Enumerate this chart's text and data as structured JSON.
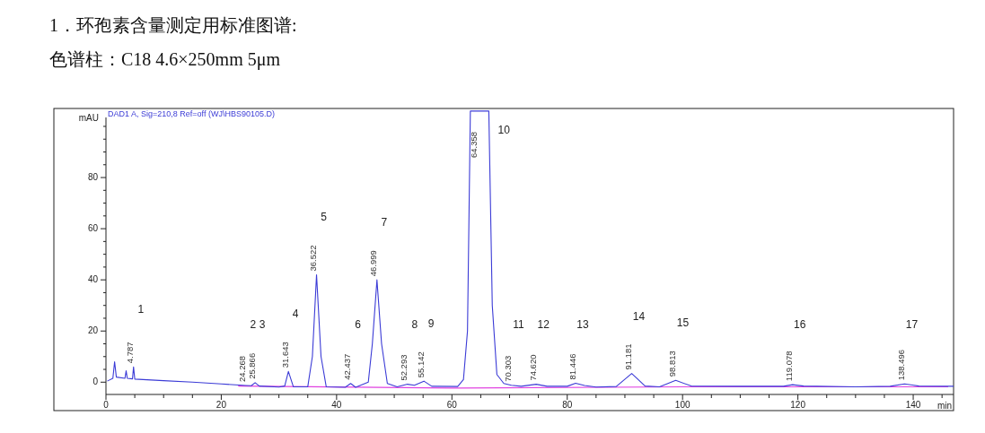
{
  "chart_data": {
    "type": "line",
    "title": "1．环孢素含量测定用标准图谱:",
    "subtitle": "色谱柱：C18 4.6×250mm 5μm",
    "xlabel": "min",
    "ylabel": "mAU",
    "xlim": [
      0,
      147
    ],
    "ylim": [
      -4.8,
      107
    ],
    "xticks": [
      0,
      {
        "value": 5,
        "label": null
      },
      {
        "value": 10,
        "label": null
      },
      {
        "value": 15,
        "label": null
      },
      20,
      {
        "value": 25,
        "label": null
      },
      {
        "value": 30,
        "label": null
      },
      {
        "value": 35,
        "label": null
      },
      40,
      {
        "value": 45,
        "label": null
      },
      {
        "value": 50,
        "label": null
      },
      {
        "value": 55,
        "label": null
      },
      60,
      {
        "value": 65,
        "label": null
      },
      {
        "value": 70,
        "label": null
      },
      {
        "value": 75,
        "label": null
      },
      80,
      {
        "value": 85,
        "label": null
      },
      {
        "value": 90,
        "label": null
      },
      {
        "value": 95,
        "label": null
      },
      100,
      {
        "value": 105,
        "label": null
      },
      {
        "value": 110,
        "label": null
      },
      {
        "value": 115,
        "label": null
      },
      120,
      {
        "value": 125,
        "label": null
      },
      {
        "value": 130,
        "label": null
      },
      {
        "value": 135,
        "label": null
      },
      140,
      {
        "value": 145,
        "label": null
      }
    ],
    "yticks": [
      0,
      {
        "value": 5,
        "label": null
      },
      {
        "value": 10,
        "label": null
      },
      {
        "value": 15,
        "label": null
      },
      20,
      {
        "value": 25,
        "label": null
      },
      {
        "value": 30,
        "label": null
      },
      {
        "value": 35,
        "label": null
      },
      40,
      {
        "value": 45,
        "label": null
      },
      {
        "value": 50,
        "label": null
      },
      {
        "value": 55,
        "label": null
      },
      60,
      {
        "value": 65,
        "label": null
      },
      {
        "value": 70,
        "label": null
      },
      {
        "value": 75,
        "label": null
      },
      80,
      {
        "value": 85,
        "label": null
      },
      {
        "value": 90,
        "label": null
      },
      {
        "value": 95,
        "label": null
      },
      {
        "value": 100,
        "label": null
      }
    ],
    "grid": false,
    "marker": "none",
    "line_style": "solid",
    "series": [
      {
        "color": "#3b3bd6",
        "x": [
          0.3,
          1.2,
          1.5,
          1.8,
          3.3,
          3.5,
          3.7,
          4.6,
          4.787,
          5.0,
          10,
          15,
          20,
          24.268,
          25.2,
          25.866,
          26.6,
          30,
          31.0,
          31.643,
          32.5,
          35.0,
          35.8,
          36.522,
          37.3,
          38.2,
          41.5,
          42.437,
          43.3,
          45.5,
          46.2,
          46.999,
          47.8,
          48.8,
          50.5,
          52.293,
          53.5,
          55.142,
          56.5,
          61,
          62.0,
          62.7,
          63.2,
          64.358,
          66.4,
          67.0,
          67.8,
          69,
          70.303,
          72,
          74.62,
          76.5,
          80,
          81.446,
          83,
          85,
          88.5,
          91.181,
          93.5,
          96,
          98.813,
          101.5,
          110,
          117.5,
          119.078,
          121,
          130,
          136,
          138.496,
          141,
          147
        ],
        "values": [
          0.5,
          1.5,
          8,
          2,
          1.5,
          4.5,
          1.5,
          1.3,
          6,
          1.2,
          0.6,
          0,
          -0.7,
          -1.3,
          -1.4,
          -0.2,
          -1.5,
          -1.9,
          -1.5,
          4.2,
          -1.8,
          -1.8,
          10,
          42,
          10,
          -1.8,
          -2,
          -0.5,
          -2,
          0,
          15,
          40,
          15,
          -0.5,
          -1.8,
          -0.8,
          -1.2,
          0.4,
          -1.6,
          -1.7,
          1,
          20,
          106,
          106,
          106,
          30,
          3,
          -0.5,
          -1.2,
          -1.6,
          -0.8,
          -1.6,
          -1.6,
          -0.4,
          -1.3,
          -1.9,
          -1.7,
          3.4,
          -1.5,
          -1.8,
          0.7,
          -1.5,
          -1.6,
          -1.6,
          -1,
          -1.5,
          -1.8,
          -1.6,
          -0.7,
          -1.5,
          -1.6
        ]
      },
      {
        "color": "#e040e0",
        "x": [
          23,
          60,
          100,
          146
        ],
        "values": [
          -1.5,
          -2.3,
          -1.8,
          -1.8
        ]
      }
    ],
    "annotations": [
      "DAD1 A, Sig=210,8 Ref=off (WJ\\HBS90105.D)",
      "1",
      {
        "text": "4.787",
        "x": 4.787,
        "y": 6
      },
      "2",
      {
        "text": "24.268",
        "x": 24.268,
        "y": -1.3
      },
      "3",
      {
        "text": "25.866",
        "x": 25.866,
        "y": -0.2
      },
      "4",
      {
        "text": "31.643",
        "x": 31.643,
        "y": 4.2
      },
      "5",
      {
        "text": "36.522",
        "x": 36.522,
        "y": 42
      },
      "6",
      {
        "text": "42.437",
        "x": 42.437,
        "y": -0.5
      },
      "7",
      {
        "text": "46.999",
        "x": 46.999,
        "y": 40
      },
      "8",
      {
        "text": "52.293",
        "x": 52.293,
        "y": -0.8
      },
      "9",
      {
        "text": "55.142",
        "x": 55.142,
        "y": 0.4
      },
      "10",
      {
        "text": "64.358",
        "x": 64.358,
        "y": 106
      },
      "11",
      {
        "text": "70.303",
        "x": 70.303,
        "y": -1.2
      },
      "12",
      {
        "text": "74.620",
        "x": 74.62,
        "y": -0.8
      },
      "13",
      {
        "text": "81.446",
        "x": 81.446,
        "y": -0.4
      },
      "14",
      {
        "text": "91.181",
        "x": 91.181,
        "y": 3.4
      },
      "15",
      {
        "text": "98.813",
        "x": 98.813,
        "y": 0.7
      },
      "16",
      {
        "text": "119.078",
        "x": 119.078,
        "y": -1
      },
      "17",
      {
        "text": "138.496",
        "x": 138.496,
        "y": -0.7
      }
    ]
  }
}
